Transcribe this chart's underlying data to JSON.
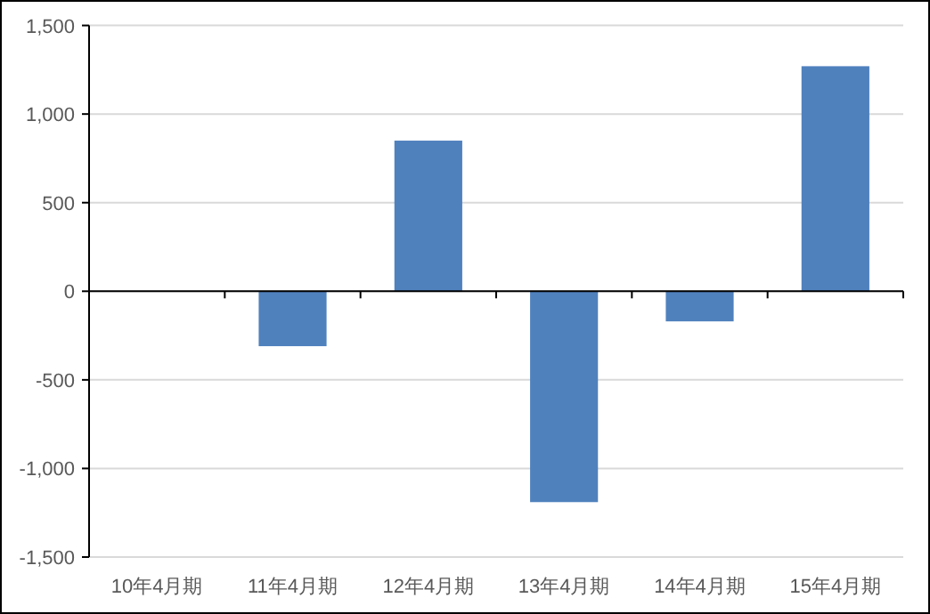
{
  "chart_data": {
    "type": "bar",
    "categories": [
      "10年4月期",
      "11年4月期",
      "12年4月期",
      "13年4月期",
      "14年4月期",
      "15年4月期"
    ],
    "values": [
      null,
      -310,
      850,
      -1190,
      -170,
      1270
    ],
    "color": "#4f81bd",
    "ylim": [
      -1500,
      1500
    ],
    "yticks": [
      {
        "value": -1500,
        "label": "-1,500"
      },
      {
        "value": -1000,
        "label": "-1,000"
      },
      {
        "value": -500,
        "label": "-500"
      },
      0,
      {
        "value": 500,
        "label": "500"
      },
      {
        "value": 1000,
        "label": "1,000"
      },
      {
        "value": 1500,
        "label": "1,500"
      }
    ],
    "grid": "y"
  }
}
